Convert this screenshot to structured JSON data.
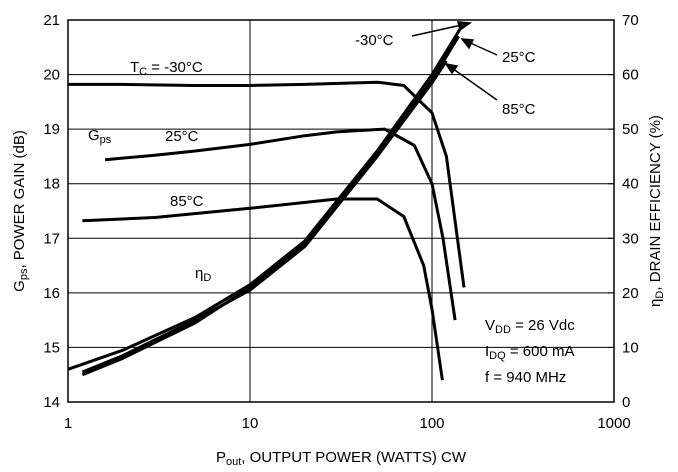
{
  "chart_data": {
    "type": "line",
    "x_label": [
      "P",
      "out",
      ", OUTPUT POWER (WATTS) CW"
    ],
    "y_label": [
      "G",
      "ps",
      ", POWER GAIN (dB)"
    ],
    "y2_label": [
      "η",
      "D",
      ", DRAIN EFFICIENCY (%)"
    ],
    "log_x": true,
    "grid": true,
    "xlim": [
      1,
      1000
    ],
    "xticks": [
      1,
      10,
      100,
      1000
    ],
    "ylim": [
      14,
      21
    ],
    "yticks": [
      14,
      15,
      16,
      17,
      18,
      19,
      20,
      21
    ],
    "y2lim": [
      0,
      70
    ],
    "y2ticks": [
      0,
      10,
      20,
      30,
      40,
      50,
      60,
      70
    ],
    "series": [
      {
        "color": "#000000",
        "x": [
          1,
          2,
          5,
          10,
          20,
          50,
          70,
          100,
          120,
          150
        ],
        "values": [
          19.82,
          19.82,
          19.8,
          19.8,
          19.82,
          19.86,
          19.8,
          19.3,
          18.5,
          16.1
        ]
      },
      {
        "color": "#000000",
        "x": [
          1.6,
          3,
          5,
          10,
          20,
          30,
          55,
          80,
          100,
          115,
          134
        ],
        "values": [
          18.44,
          18.52,
          18.6,
          18.72,
          18.88,
          18.95,
          19.0,
          18.7,
          18.0,
          17.0,
          15.5
        ]
      },
      {
        "color": "#000000",
        "x": [
          1.2,
          3,
          10,
          30,
          50,
          70,
          90,
          100,
          114
        ],
        "values": [
          17.32,
          17.38,
          17.55,
          17.72,
          17.72,
          17.4,
          16.5,
          15.7,
          14.4
        ]
      },
      {
        "color": "#000000",
        "axis": "y2",
        "x": [
          1,
          2,
          5,
          10,
          20,
          50,
          100,
          150
        ],
        "values": [
          6,
          9.5,
          15.5,
          21.5,
          29.5,
          46,
          60,
          69.5
        ]
      },
      {
        "color": "#000000",
        "axis": "y2",
        "x": [
          1.2,
          2,
          5,
          10,
          20,
          50,
          100,
          140
        ],
        "values": [
          5,
          8,
          14.5,
          21,
          29,
          45.5,
          59,
          67
        ]
      },
      {
        "color": "#000000",
        "axis": "y2",
        "x": [
          1.2,
          2,
          5,
          10,
          20,
          50,
          100,
          120
        ],
        "values": [
          5.5,
          8.5,
          15,
          20.5,
          28.5,
          45,
          58.5,
          62.5
        ]
      }
    ],
    "annotations": [
      {
        "text": [
          "T",
          "C",
          " = -30°C"
        ]
      },
      {
        "text": [
          "G",
          "ps"
        ]
      },
      {
        "text": [
          "25°C"
        ]
      },
      {
        "text": [
          "85°C"
        ]
      },
      {
        "text": [
          "η",
          "D"
        ]
      },
      {
        "text": [
          "-30°C"
        ]
      },
      {
        "text": [
          "25°C"
        ]
      },
      {
        "text": [
          "85°C"
        ]
      },
      {
        "text": [
          "V",
          "DD",
          " = 26 Vdc"
        ]
      },
      {
        "text": [
          "I",
          "DQ",
          " = 600 mA"
        ]
      },
      {
        "text": [
          "f = 940 MHz"
        ]
      }
    ]
  }
}
